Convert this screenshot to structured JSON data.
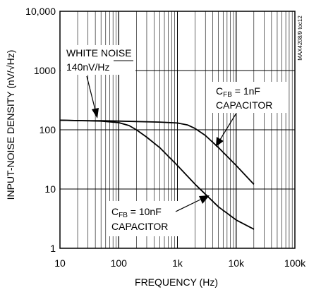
{
  "chart_data": {
    "type": "line",
    "x_scale": "log",
    "y_scale": "log",
    "xlim": [
      10,
      100000
    ],
    "ylim": [
      1,
      10000
    ],
    "xlabel": "FREQUENCY (Hz)",
    "ylabel": "INPUT-NOISE DENSITY (nV/√Hz)",
    "grid": true,
    "x_ticks": [
      {
        "value": 10,
        "label": "10"
      },
      {
        "value": 100,
        "label": "100"
      },
      {
        "value": 1000,
        "label": "1k"
      },
      {
        "value": 10000,
        "label": "10k"
      },
      {
        "value": 100000,
        "label": "100k"
      }
    ],
    "y_ticks": [
      {
        "value": 1,
        "label": "1"
      },
      {
        "value": 10,
        "label": "10"
      },
      {
        "value": 100,
        "label": "100"
      },
      {
        "value": 1000,
        "label": "1000"
      },
      {
        "value": 10000,
        "label": "10,000"
      }
    ],
    "series": [
      {
        "curve": "cfb-1nf",
        "x": [
          10,
          20,
          50,
          100,
          200,
          500,
          1000,
          1500,
          2000,
          3000,
          5000,
          10000,
          20000
        ],
        "y": [
          145,
          143,
          142,
          140,
          138,
          135,
          130,
          120,
          105,
          80,
          50,
          25,
          12
        ]
      },
      {
        "curve": "cfb-10nf",
        "x": [
          10,
          20,
          50,
          100,
          150,
          200,
          300,
          500,
          1000,
          2000,
          5000,
          10000,
          20000
        ],
        "y": [
          145,
          143,
          140,
          132,
          118,
          100,
          75,
          50,
          25,
          12,
          5,
          3,
          2.1
        ]
      }
    ],
    "annotations": [
      {
        "id": "white-noise",
        "lines": [
          "WHITE NOISE",
          "140nV/Hz"
        ]
      },
      {
        "id": "cfb-1nf",
        "prefix": "C",
        "sub": "FB",
        "suffix": " = 1nF",
        "line2": "CAPACITOR"
      },
      {
        "id": "cfb-10nf",
        "prefix": "C",
        "sub": "FB",
        "suffix": " = 10nF",
        "line2": "CAPACITOR"
      }
    ],
    "side_label": "MAX4208/9 toc12"
  }
}
